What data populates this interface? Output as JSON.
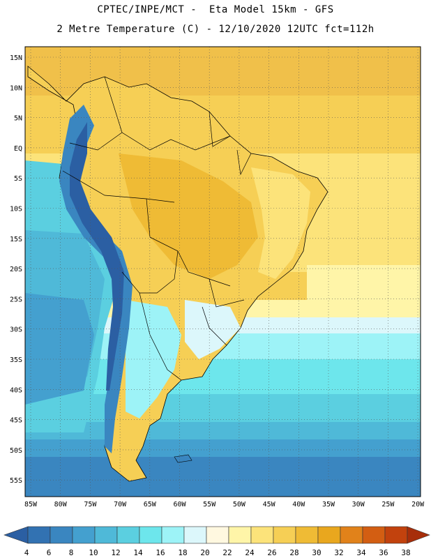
{
  "header": {
    "line1": "CPTEC/INPE/MCT -  Eta Model 15km - GFS",
    "line2": "2 Metre Temperature (C) - 12/10/2020 12UTC fct=112h"
  },
  "map": {
    "lat_labels": [
      "15N",
      "10N",
      "5N",
      "EQ",
      "5S",
      "10S",
      "15S",
      "20S",
      "25S",
      "30S",
      "35S",
      "40S",
      "45S",
      "50S",
      "55S"
    ],
    "lon_labels": [
      "85W",
      "80W",
      "75W",
      "70W",
      "65W",
      "60W",
      "55W",
      "50W",
      "45W",
      "40W",
      "35W",
      "30W",
      "25W",
      "20W"
    ]
  },
  "colorbar": {
    "levels": [
      "4",
      "6",
      "8",
      "10",
      "12",
      "14",
      "16",
      "18",
      "20",
      "22",
      "24",
      "26",
      "28",
      "30",
      "32",
      "34",
      "36",
      "38"
    ],
    "colors": [
      "#2b5fa3",
      "#3272b2",
      "#3a86c0",
      "#44a0cf",
      "#4fb9d8",
      "#5bcfe0",
      "#6de6ec",
      "#9df3f7",
      "#dcf7fb",
      "#fff8e0",
      "#fff5a8",
      "#fce37a",
      "#f6cf55",
      "#efbb35",
      "#e9a71e",
      "#e1821a",
      "#d35e12",
      "#c2420d",
      "#a72e0a"
    ]
  }
}
